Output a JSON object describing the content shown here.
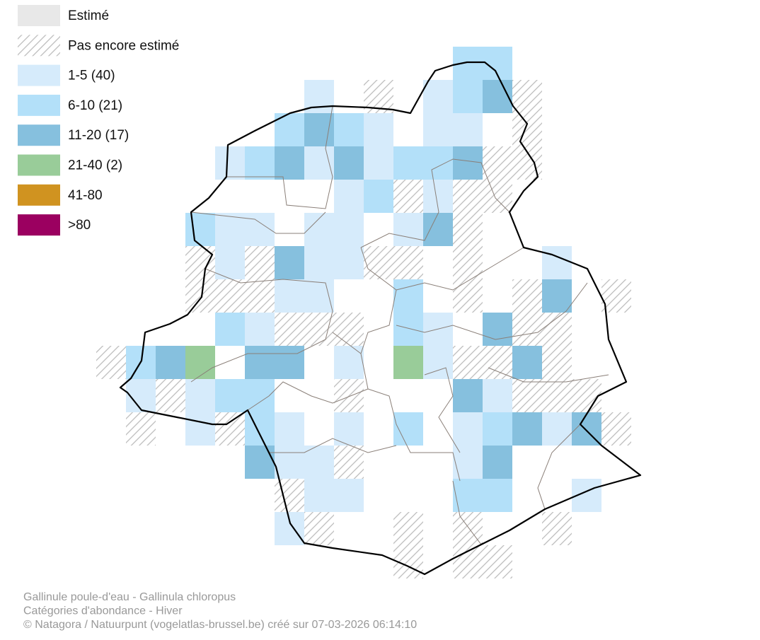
{
  "legend": [
    {
      "label": "Estimé",
      "color": "#e8e8e8"
    },
    {
      "label": "Pas encore estimé"
    },
    {
      "label": "1-5 (40)",
      "color": "#d6ebfb"
    },
    {
      "label": "6-10 (21)",
      "color": "#b3e0f9"
    },
    {
      "label": "11-20 (17)",
      "color": "#86c0de"
    },
    {
      "label": "21-40 (2)",
      "color": "#99cc99"
    },
    {
      "label": "41-80",
      "color": "#d09320"
    },
    {
      "label": ">80",
      "color": "#9b0060"
    }
  ],
  "footer": [
    "Gallinule poule-d'eau - Gallinula chloropus",
    "Catégories d'abondance - Hiver",
    "© Natagora / Natuurpunt (vogelatlas-brussel.be) créé sur 07-03-2026 06:14:10"
  ]
}
